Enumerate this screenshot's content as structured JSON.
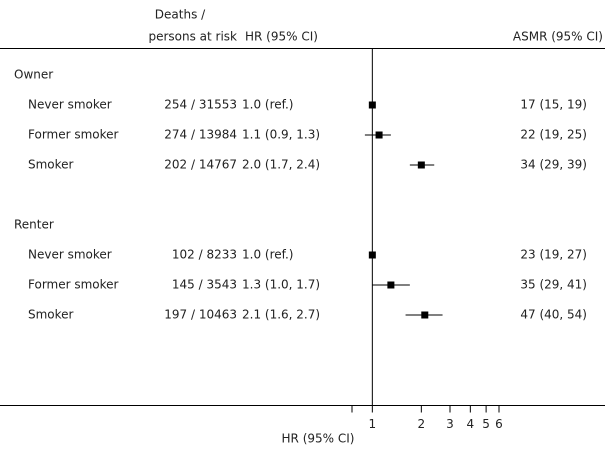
{
  "chart_data": {
    "type": "forest",
    "column_headers": {
      "deaths": [
        "Deaths /",
        "persons at risk"
      ],
      "hr": "HR (95% CI)",
      "asmr": "ASMR (95% CI)"
    },
    "x_label": "HR (95% CI)",
    "xscale": "log",
    "xlim": [
      0.75,
      6
    ],
    "xticks": [
      1,
      2,
      3,
      4,
      5,
      6
    ],
    "reference_line": 1,
    "color": "#000000",
    "groups": [
      {
        "name": "Owner",
        "rows": [
          {
            "label": "Never smoker",
            "deaths": "254 / 31553",
            "hr_label": "1.0 (ref.)",
            "hr": 1.0,
            "lower": null,
            "upper": null,
            "asmr": "17 (15, 19)"
          },
          {
            "label": "Former smoker",
            "deaths": "274 / 13984",
            "hr_label": "1.1 (0.9, 1.3)",
            "hr": 1.1,
            "lower": 0.9,
            "upper": 1.3,
            "asmr": "22 (19, 25)"
          },
          {
            "label": "Smoker",
            "deaths": "202 / 14767",
            "hr_label": "2.0 (1.7, 2.4)",
            "hr": 2.0,
            "lower": 1.7,
            "upper": 2.4,
            "asmr": "34 (29, 39)"
          }
        ]
      },
      {
        "name": "Renter",
        "rows": [
          {
            "label": "Never smoker",
            "deaths": "102 / 8233",
            "hr_label": "1.0 (ref.)",
            "hr": 1.0,
            "lower": null,
            "upper": null,
            "asmr": "23 (19, 27)"
          },
          {
            "label": "Former smoker",
            "deaths": "145 / 3543",
            "hr_label": "1.3 (1.0, 1.7)",
            "hr": 1.3,
            "lower": 1.0,
            "upper": 1.7,
            "asmr": "35 (29, 41)"
          },
          {
            "label": "Smoker",
            "deaths": "197 / 10463",
            "hr_label": "2.1 (1.6, 2.7)",
            "hr": 2.1,
            "lower": 1.6,
            "upper": 2.7,
            "asmr": "47 (40, 54)"
          }
        ]
      }
    ]
  }
}
